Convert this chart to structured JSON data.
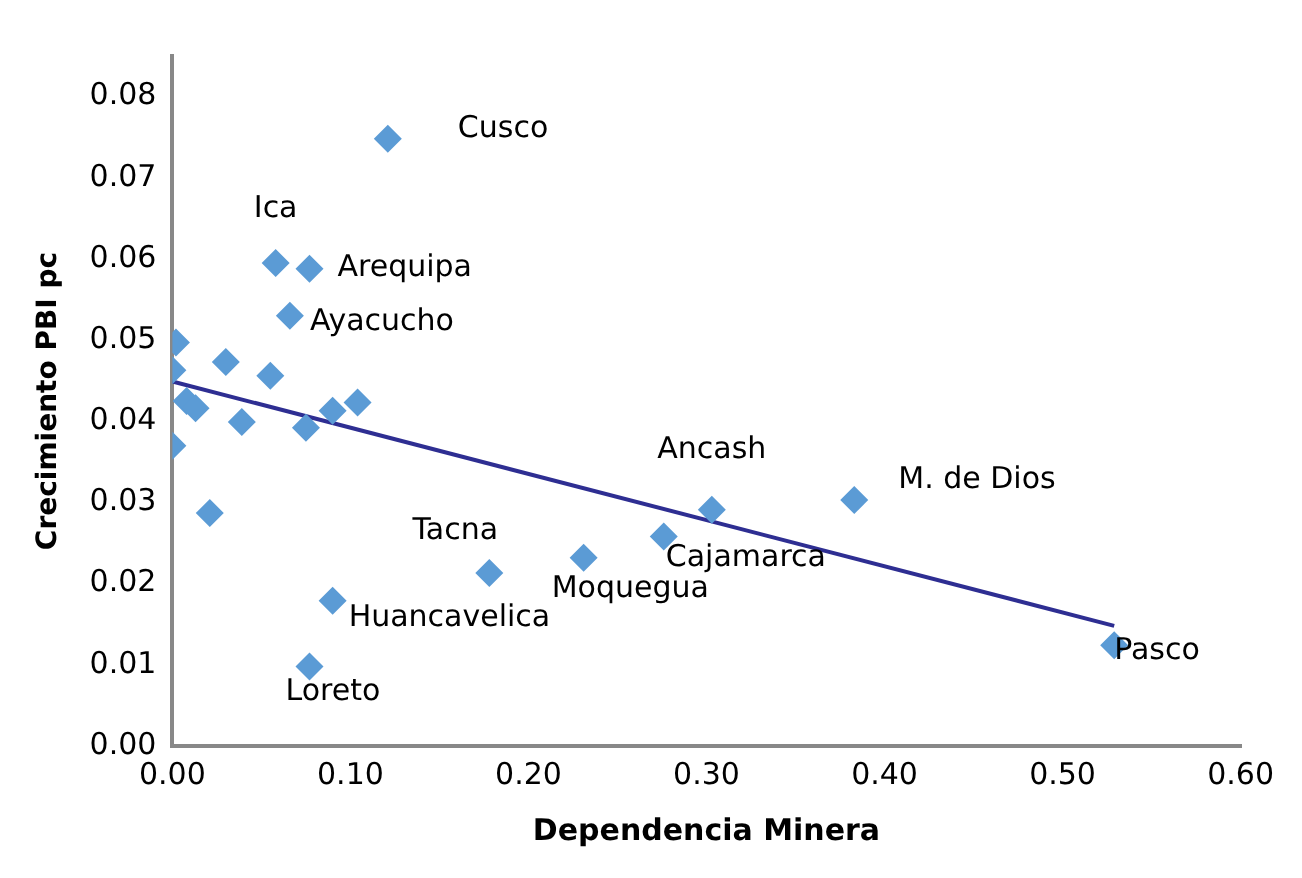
{
  "chart_data": {
    "type": "scatter",
    "xlabel": "Dependencia Minera",
    "ylabel": "Crecimiento PBI pc",
    "grid": false,
    "legend": false,
    "xlim": [
      0,
      0.6
    ],
    "xticks": [
      {
        "value": 0,
        "label": "0.00"
      },
      {
        "value": 0.1,
        "label": "0.10"
      },
      {
        "value": 0.2,
        "label": "0.20"
      },
      {
        "value": 0.3,
        "label": "0.30"
      },
      {
        "value": 0.4,
        "label": "0.40"
      },
      {
        "value": 0.5,
        "label": "0.50"
      },
      {
        "value": 0.6,
        "label": "0.60"
      }
    ],
    "ylim": [
      0,
      0.085
    ],
    "yticks": [
      {
        "value": 0,
        "label": "0.00"
      },
      {
        "value": 0.01,
        "label": "0.01"
      },
      {
        "value": 0.02,
        "label": "0.02"
      },
      {
        "value": 0.03,
        "label": "0.03"
      },
      {
        "value": 0.04,
        "label": "0.04"
      },
      {
        "value": 0.05,
        "label": "0.05"
      },
      {
        "value": 0.06,
        "label": "0.06"
      },
      {
        "value": 0.07,
        "label": "0.07"
      },
      {
        "value": 0.08,
        "label": "0.08"
      }
    ],
    "series": [
      {
        "marker": "diamond",
        "color": "#5b9bd5",
        "x": [
          0.121,
          0.058,
          0.077,
          0.066,
          0.002,
          0.0,
          0.03,
          0.055,
          0.09,
          0.104,
          0.008,
          0.013,
          0.039,
          0.075,
          0.0,
          0.021,
          0.303,
          0.383,
          0.276,
          0.231,
          0.178,
          0.09,
          0.077,
          0.529
        ],
        "values": [
          0.0748,
          0.0595,
          0.0588,
          0.053,
          0.0497,
          0.0463,
          0.0473,
          0.0456,
          0.0413,
          0.0423,
          0.0425,
          0.0416,
          0.0399,
          0.0392,
          0.037,
          0.0287,
          0.0291,
          0.0303,
          0.0258,
          0.0232,
          0.0213,
          0.0179,
          0.0098,
          0.0124
        ]
      },
      {
        "type": "line",
        "marker": "none",
        "color": "#2e2e92",
        "x": [
          0,
          0.529
        ],
        "values": [
          0.0449,
          0.0148
        ]
      }
    ],
    "annotations": [
      {
        "text": "Cusco",
        "x": 0.121,
        "y": 0.0748
      },
      {
        "text": "Ica",
        "x": 0.058,
        "y": 0.0595
      },
      {
        "text": "Arequipa",
        "x": 0.077,
        "y": 0.0588
      },
      {
        "text": "Ayacucho",
        "x": 0.066,
        "y": 0.053
      },
      {
        "text": "Ancash",
        "x": 0.303,
        "y": 0.0291
      },
      {
        "text": "M. de Dios",
        "x": 0.383,
        "y": 0.0303
      },
      {
        "text": "Cajamarca",
        "x": 0.276,
        "y": 0.0258
      },
      {
        "text": "Moquegua",
        "x": 0.231,
        "y": 0.0232
      },
      {
        "text": "Tacna",
        "x": 0.178,
        "y": 0.0213
      },
      {
        "text": "Huancavelica",
        "x": 0.09,
        "y": 0.0179
      },
      {
        "text": "Loreto",
        "x": 0.077,
        "y": 0.0098
      },
      {
        "text": "Pasco",
        "x": 0.529,
        "y": 0.0124
      }
    ]
  }
}
